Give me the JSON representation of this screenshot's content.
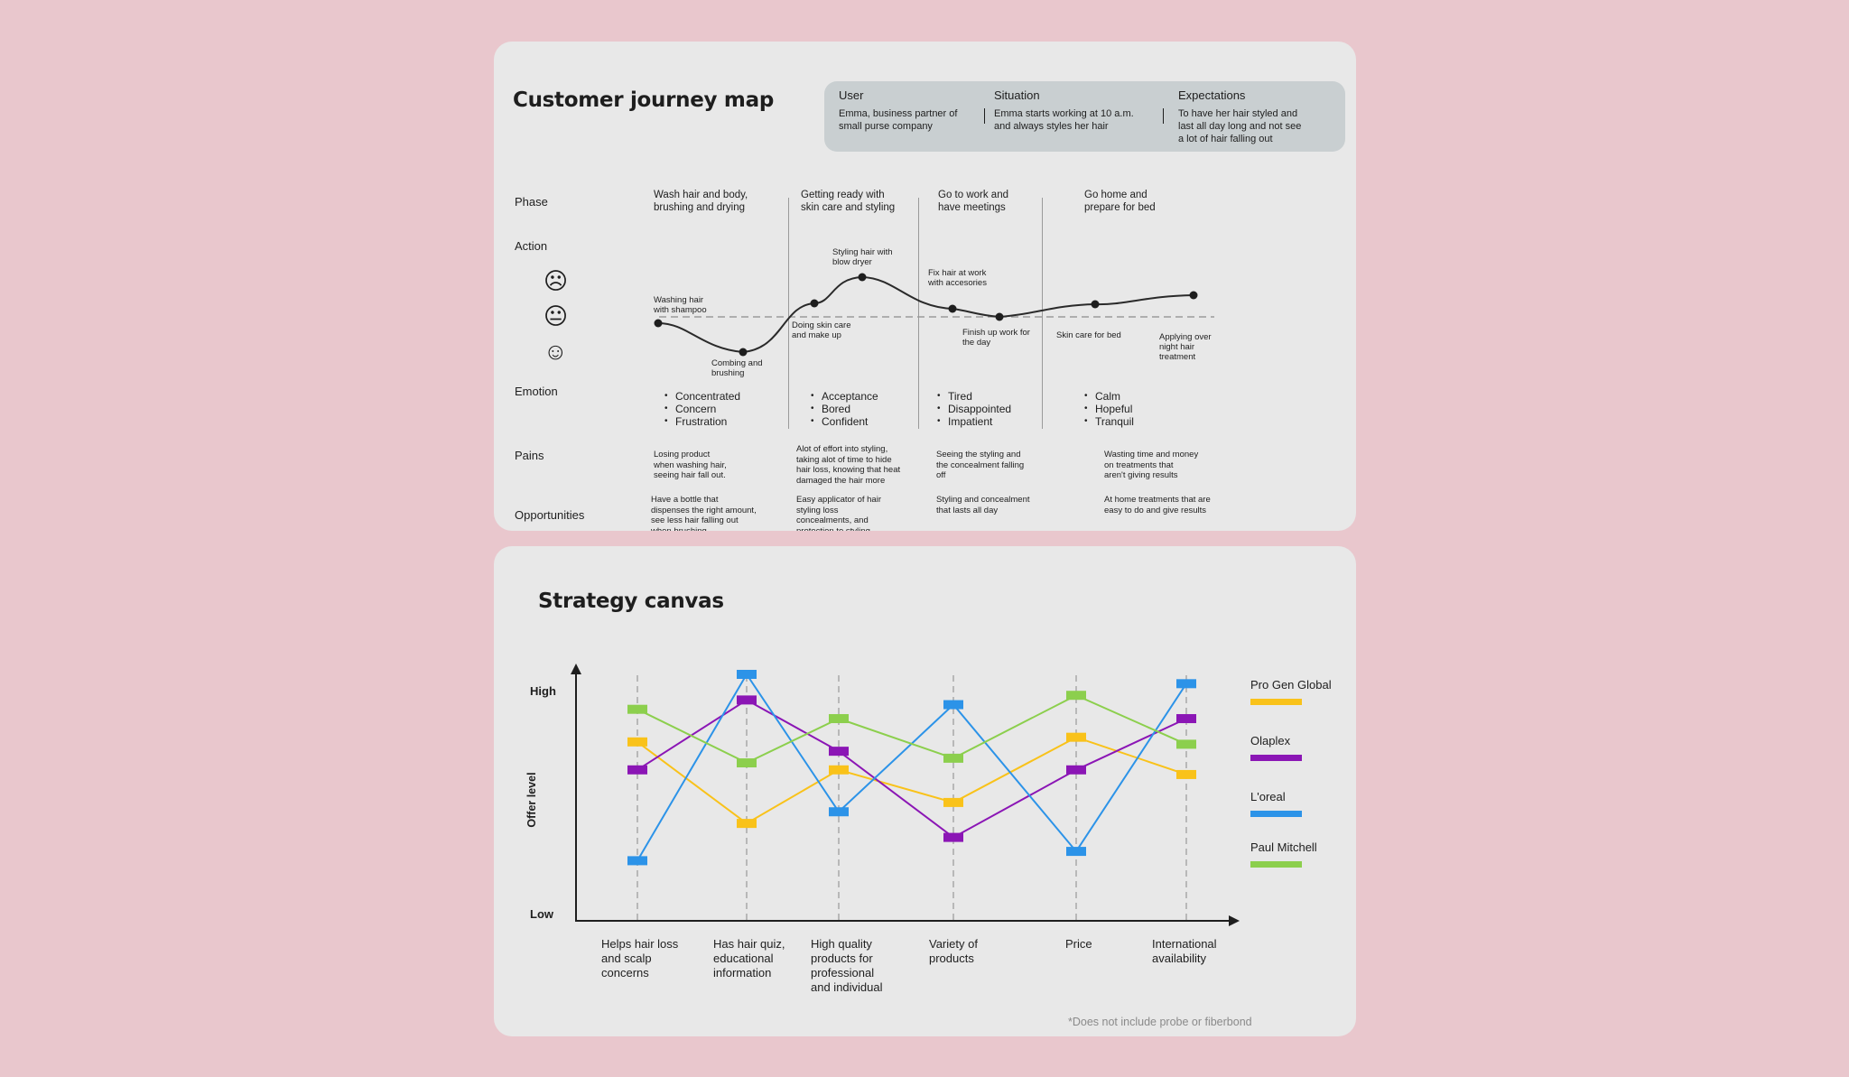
{
  "colors": {
    "background": "#e9c7cd",
    "card": "#e8e8e8",
    "info_panel": "#c9cfd1"
  },
  "journey": {
    "title": "Customer journey map",
    "info": [
      {
        "heading": "User",
        "text": "Emma, business partner of\nsmall purse company"
      },
      {
        "heading": "Situation",
        "text": "Emma starts working at 10 a.m.\nand always styles her hair"
      },
      {
        "heading": "Expectations",
        "text": "To have her hair styled and\nlast all day long and not see\na lot of hair falling out"
      }
    ],
    "row_labels": [
      "Phase",
      "Action",
      "Emotion",
      "Pains",
      "Opportunities"
    ],
    "faces": [
      "sad-face-icon",
      "neutral-face-icon",
      "happy-face-icon"
    ],
    "phases": [
      "Wash hair and body,\nbrushing and drying",
      "Getting ready with\nskin care and styling",
      "Go to work and\nhave meetings",
      "Go home and\nprepare for bed"
    ],
    "action_points": [
      "Washing hair\nwith shampoo",
      "Combing and\nbrushing",
      "Doing skin care\nand make up",
      "Styling hair with\nblow dryer",
      "Fix hair at work\nwith accesories",
      "Finish up work for\nthe day",
      "Skin care for bed",
      "Applying over\nnight hair\ntreatment"
    ],
    "emotions": [
      [
        "Concentrated",
        "Concern",
        "Frustration"
      ],
      [
        "Acceptance",
        "Bored",
        "Confident"
      ],
      [
        "Tired",
        "Disappointed",
        "Impatient"
      ],
      [
        "Calm",
        "Hopeful",
        "Tranquil"
      ]
    ],
    "pains": [
      "Losing product\nwhen washing hair,\nseeing hair fall out.",
      "Alot of effort into styling,\ntaking alot of time to hide\nhair loss, knowing that heat\ndamaged the hair more",
      "Seeing the styling and\nthe concealment falling\noff",
      "Wasting time and money\non treatments that\naren't giving results"
    ],
    "opportunities": [
      "Have a bottle that\ndispenses the right amount,\nsee less hair falling out\nwhen brushing",
      "Easy applicator of hair\nstyling loss\nconcealments, and\nprotection to styling",
      "Styling and concealment\nthat lasts all day",
      "At home treatments that are\neasy to do and give results"
    ]
  },
  "chart_data": {
    "type": "line",
    "title": "Strategy canvas",
    "ylabel": "Offer level",
    "y_tick_labels": [
      "High",
      "Low"
    ],
    "ylim": [
      0,
      10
    ],
    "categories": [
      "Helps hair loss\nand scalp\nconcerns",
      "Has hair quiz,\neducational\ninformation",
      "High quality\nproducts for\nprofessional\nand individual",
      "Variety of\nproducts",
      "Price",
      "International\navailability"
    ],
    "series": [
      {
        "name": "Pro Gen Global",
        "color": "#f9c21a",
        "values": [
          7.1,
          3.6,
          5.9,
          4.5,
          7.3,
          5.7
        ]
      },
      {
        "name": "Olaplex",
        "color": "#8b16b5",
        "values": [
          5.9,
          8.9,
          6.7,
          3.0,
          5.9,
          8.1
        ]
      },
      {
        "name": "L'oreal",
        "color": "#2c93e8",
        "values": [
          2.0,
          10.0,
          4.1,
          8.7,
          2.4,
          9.6
        ]
      },
      {
        "name": "Paul Mitchell",
        "color": "#8ccf4d",
        "values": [
          8.5,
          6.2,
          8.1,
          6.4,
          9.1,
          7.0
        ]
      }
    ],
    "legend": "right",
    "grid": "vertical dashed",
    "footnote": "*Does not include probe or fiberbond"
  }
}
